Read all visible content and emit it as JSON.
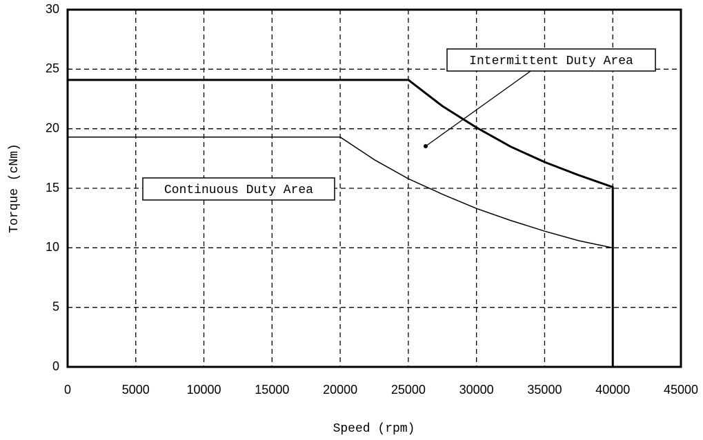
{
  "chart_data": {
    "type": "line",
    "xlabel": "Speed (rpm)",
    "ylabel": "Torque (cNm)",
    "xlim": [
      0,
      45000
    ],
    "xticks": [
      0,
      5000,
      10000,
      15000,
      20000,
      25000,
      30000,
      35000,
      40000,
      45000
    ],
    "ylim": [
      0,
      30
    ],
    "yticks": [
      0,
      5,
      10,
      15,
      20,
      25,
      30
    ],
    "grid": true,
    "series": [
      {
        "color": "#000000",
        "width": 3,
        "x": [
          0,
          25000,
          27500,
          30000,
          32500,
          35000,
          37500,
          40000,
          40000
        ],
        "values": [
          24.1,
          24.1,
          21.9,
          20.1,
          18.5,
          17.2,
          16.1,
          15.1,
          0
        ]
      },
      {
        "color": "#000000",
        "width": 1.5,
        "x": [
          0,
          20000,
          22500,
          25000,
          27500,
          30000,
          32500,
          35000,
          37500,
          40000
        ],
        "values": [
          19.3,
          19.3,
          17.4,
          15.8,
          14.5,
          13.3,
          12.3,
          11.4,
          10.6,
          10.0
        ]
      }
    ],
    "annotations": [
      "Intermittent Duty Area",
      "Continuous Duty Area"
    ]
  }
}
